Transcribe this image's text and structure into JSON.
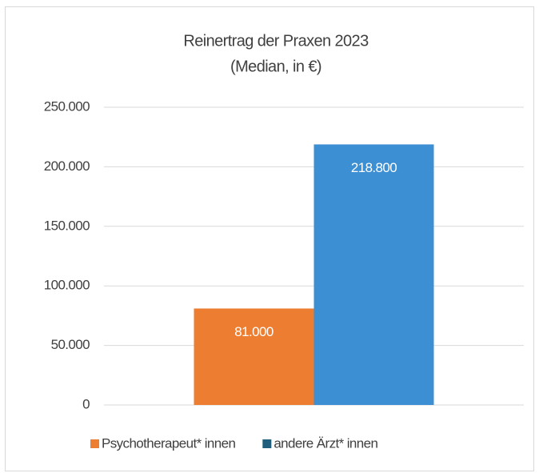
{
  "chart_data": {
    "type": "bar",
    "title": "Reinertrag der Praxen 2023",
    "subtitle": "(Median, in €)",
    "categories": [
      null
    ],
    "series": [
      {
        "name": "Psychotherapeut* innen",
        "color": "#ed7d31",
        "legend_color": "#ed7d31",
        "values": [
          81000
        ],
        "value_labels": [
          "81.000"
        ]
      },
      {
        "name": "andere Ärzt* innen",
        "color": "#3d8fd3",
        "legend_color": "#1f5f7d",
        "values": [
          218800
        ],
        "value_labels": [
          "218.800"
        ]
      }
    ],
    "ylim": [
      0,
      250000
    ],
    "yticks": [
      0,
      {
        "value": 50000,
        "label": "50.000"
      },
      {
        "value": 100000,
        "label": "100.000"
      },
      {
        "value": 150000,
        "label": "150.000"
      },
      {
        "value": 200000,
        "label": "200.000"
      },
      {
        "value": 250000,
        "label": "250.000"
      }
    ],
    "grid": true
  }
}
